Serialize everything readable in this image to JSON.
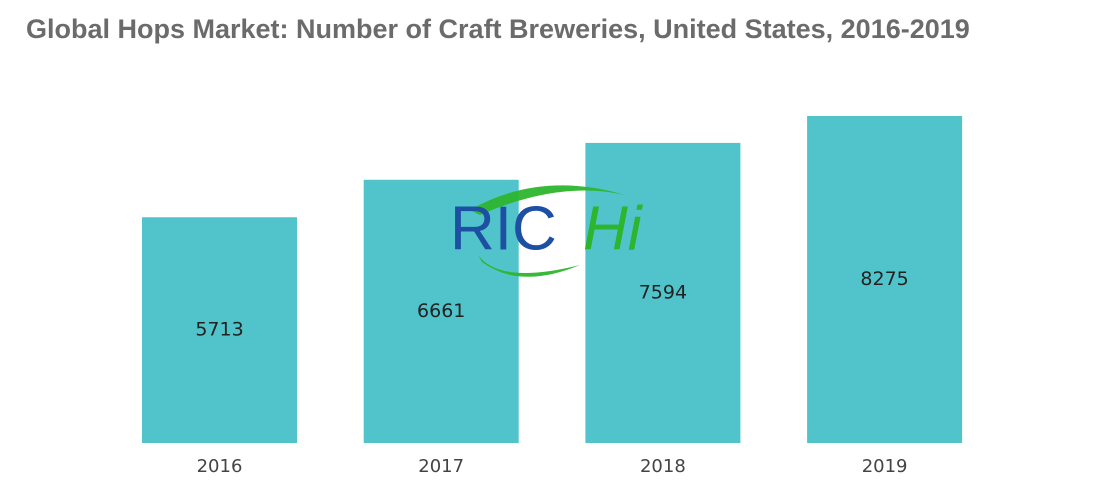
{
  "chart_data": {
    "type": "bar",
    "title": "Global Hops Market: Number of Craft Breweries, United States, 2016-2019",
    "categories": [
      "2016",
      "2017",
      "2018",
      "2019"
    ],
    "values": [
      5713,
      6661,
      7594,
      8275
    ],
    "color": "#50c4ca",
    "watermark": [
      "RIC",
      "Hi"
    ]
  }
}
